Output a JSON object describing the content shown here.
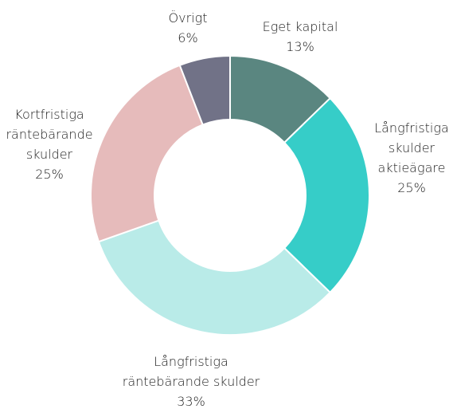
{
  "chart_data": {
    "type": "donut",
    "categories": [
      "Eget kapital",
      "Långfristiga skulder aktieägare",
      "Långfristiga räntebärande skulder",
      "Kortfristiga räntebärande skulder",
      "Övrigt"
    ],
    "values": [
      13,
      25,
      33,
      25,
      6
    ],
    "value_labels": [
      "13%",
      "25%",
      "33%",
      "25%",
      "6%"
    ],
    "colors": [
      "#5a8680",
      "#36cdc8",
      "#b9ebe8",
      "#e6bbbb",
      "#717287"
    ]
  }
}
